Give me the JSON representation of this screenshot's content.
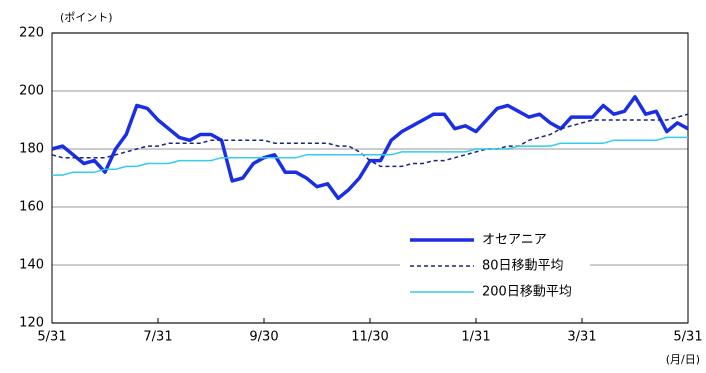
{
  "chart_data": {
    "type": "line",
    "y_label": "(ポイント)",
    "x_label": "(月/日)",
    "x": [
      0,
      1,
      2,
      3,
      4,
      5,
      6,
      7,
      8,
      9,
      10,
      11,
      12,
      13,
      14,
      15,
      16,
      17,
      18,
      19,
      20,
      21,
      22,
      23,
      24,
      25,
      26,
      27,
      28,
      29,
      30,
      31,
      32,
      33,
      34,
      35,
      36,
      37,
      38,
      39,
      40,
      41,
      42,
      43,
      44,
      45,
      46,
      47,
      48,
      49,
      50,
      51,
      52,
      53,
      54,
      55,
      56,
      57,
      58,
      59,
      60
    ],
    "series": [
      {
        "name": "オセアニア",
        "color": "#1a2ee6",
        "style": "solid",
        "values": [
          180,
          181,
          178,
          175,
          176,
          172,
          180,
          185,
          195,
          194,
          190,
          187,
          184,
          183,
          185,
          185,
          183,
          169,
          170,
          175,
          177,
          178,
          172,
          172,
          170,
          167,
          168,
          163,
          166,
          170,
          176,
          176,
          183,
          186,
          188,
          190,
          192,
          192,
          187,
          188,
          186,
          190,
          194,
          195,
          193,
          191,
          192,
          189,
          187,
          191,
          191,
          191,
          195,
          192,
          193,
          198,
          192,
          193,
          186,
          189,
          187
        ]
      },
      {
        "name": "80日移動平均",
        "color": "#1a237e",
        "style": "dashed",
        "values": [
          178,
          177,
          177,
          177,
          177,
          177,
          178,
          179,
          180,
          181,
          181,
          182,
          182,
          182,
          182,
          183,
          183,
          183,
          183,
          183,
          183,
          182,
          182,
          182,
          182,
          182,
          182,
          181,
          181,
          179,
          176,
          174,
          174,
          174,
          175,
          175,
          176,
          176,
          177,
          178,
          179,
          180,
          180,
          181,
          181,
          183,
          184,
          185,
          187,
          188,
          189,
          190,
          190,
          190,
          190,
          190,
          190,
          190,
          190,
          191,
          192
        ]
      },
      {
        "name": "200日移動平均",
        "color": "#33ccee",
        "style": "solid",
        "values": [
          171,
          171,
          172,
          172,
          172,
          173,
          173,
          174,
          174,
          175,
          175,
          175,
          176,
          176,
          176,
          176,
          177,
          177,
          177,
          177,
          177,
          177,
          177,
          177,
          178,
          178,
          178,
          178,
          178,
          178,
          178,
          178,
          178,
          179,
          179,
          179,
          179,
          179,
          179,
          179,
          180,
          180,
          180,
          180,
          181,
          181,
          181,
          181,
          182,
          182,
          182,
          182,
          182,
          183,
          183,
          183,
          183,
          183,
          184,
          184,
          184
        ]
      }
    ],
    "xlim": [
      0,
      60
    ],
    "xticks": [
      {
        "value": 0,
        "label": "5/31"
      },
      {
        "value": 10,
        "label": "7/31"
      },
      {
        "value": 20,
        "label": "9/30"
      },
      {
        "value": 30,
        "label": "11/30"
      },
      {
        "value": 40,
        "label": "1/31"
      },
      {
        "value": 50,
        "label": "3/31"
      },
      {
        "value": 60,
        "label": "5/31"
      }
    ],
    "ylim": [
      120,
      220
    ],
    "yticks": [
      120,
      140,
      160,
      180,
      200,
      220
    ],
    "grid": true,
    "legend": "lower-right"
  }
}
